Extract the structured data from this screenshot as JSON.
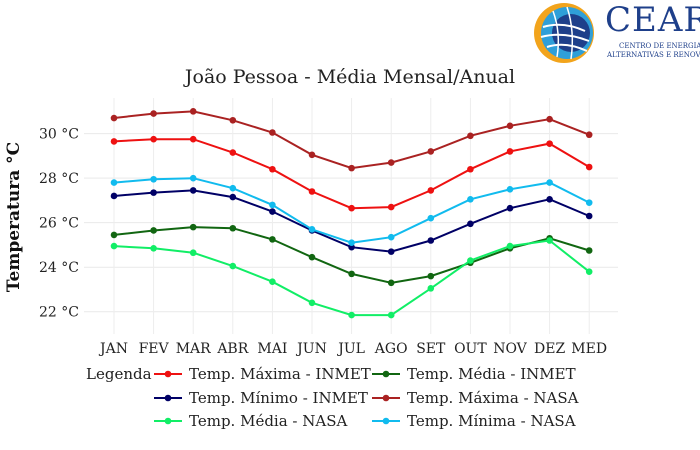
{
  "logo": {
    "name": "CEAR",
    "subtitle_line1": "CENTRO DE ENERGIAS",
    "subtitle_line2": "ALTERNATIVAS E RENOVÁVEIS"
  },
  "chart_data": {
    "type": "line",
    "title": "João Pessoa - Média Mensal/Anual",
    "xlabel": "",
    "ylabel": "Temperatura °C",
    "categories": [
      "JAN",
      "FEV",
      "MAR",
      "ABR",
      "MAI",
      "JUN",
      "JUL",
      "AGO",
      "SET",
      "OUT",
      "NOV",
      "DEZ",
      "MED"
    ],
    "ylim": [
      21.0,
      31.6
    ],
    "yticks": [
      22,
      24,
      26,
      28,
      30
    ],
    "ytick_labels": [
      "22 °C",
      "24 °C",
      "26 °C",
      "28 °C",
      "30 °C"
    ],
    "grid": true,
    "legend_title": "Legenda",
    "legend_position": "bottom",
    "series": [
      {
        "name": "Temp. Máxima - INMET",
        "color": "#ee1111",
        "values": [
          29.65,
          29.75,
          29.75,
          29.15,
          28.4,
          27.4,
          26.65,
          26.7,
          27.45,
          28.4,
          29.2,
          29.55,
          28.5
        ]
      },
      {
        "name": "Temp. Média - INMET",
        "color": "#116611",
        "values": [
          25.45,
          25.65,
          25.8,
          25.75,
          25.25,
          24.45,
          23.7,
          23.3,
          23.6,
          24.2,
          24.85,
          25.3,
          24.75
        ]
      },
      {
        "name": "Temp. Mínimo - INMET",
        "color": "#000066",
        "values": [
          27.2,
          27.35,
          27.45,
          27.15,
          26.5,
          25.65,
          24.9,
          24.7,
          25.2,
          25.95,
          26.65,
          27.05,
          26.3
        ]
      },
      {
        "name": "Temp. Máxima - NASA",
        "color": "#aa2222",
        "values": [
          30.7,
          30.9,
          31.0,
          30.6,
          30.05,
          29.05,
          28.45,
          28.7,
          29.2,
          29.9,
          30.35,
          30.65,
          29.95
        ]
      },
      {
        "name": "Temp. Média - NASA",
        "color": "#11ee66",
        "values": [
          24.95,
          24.85,
          24.65,
          24.05,
          23.35,
          22.4,
          21.85,
          21.85,
          23.05,
          24.3,
          24.95,
          25.2,
          23.8
        ]
      },
      {
        "name": "Temp. Mínima - NASA",
        "color": "#11bbee",
        "values": [
          27.8,
          27.95,
          28.0,
          27.55,
          26.8,
          25.7,
          25.1,
          25.35,
          26.2,
          27.05,
          27.5,
          27.8,
          26.9
        ]
      }
    ]
  }
}
